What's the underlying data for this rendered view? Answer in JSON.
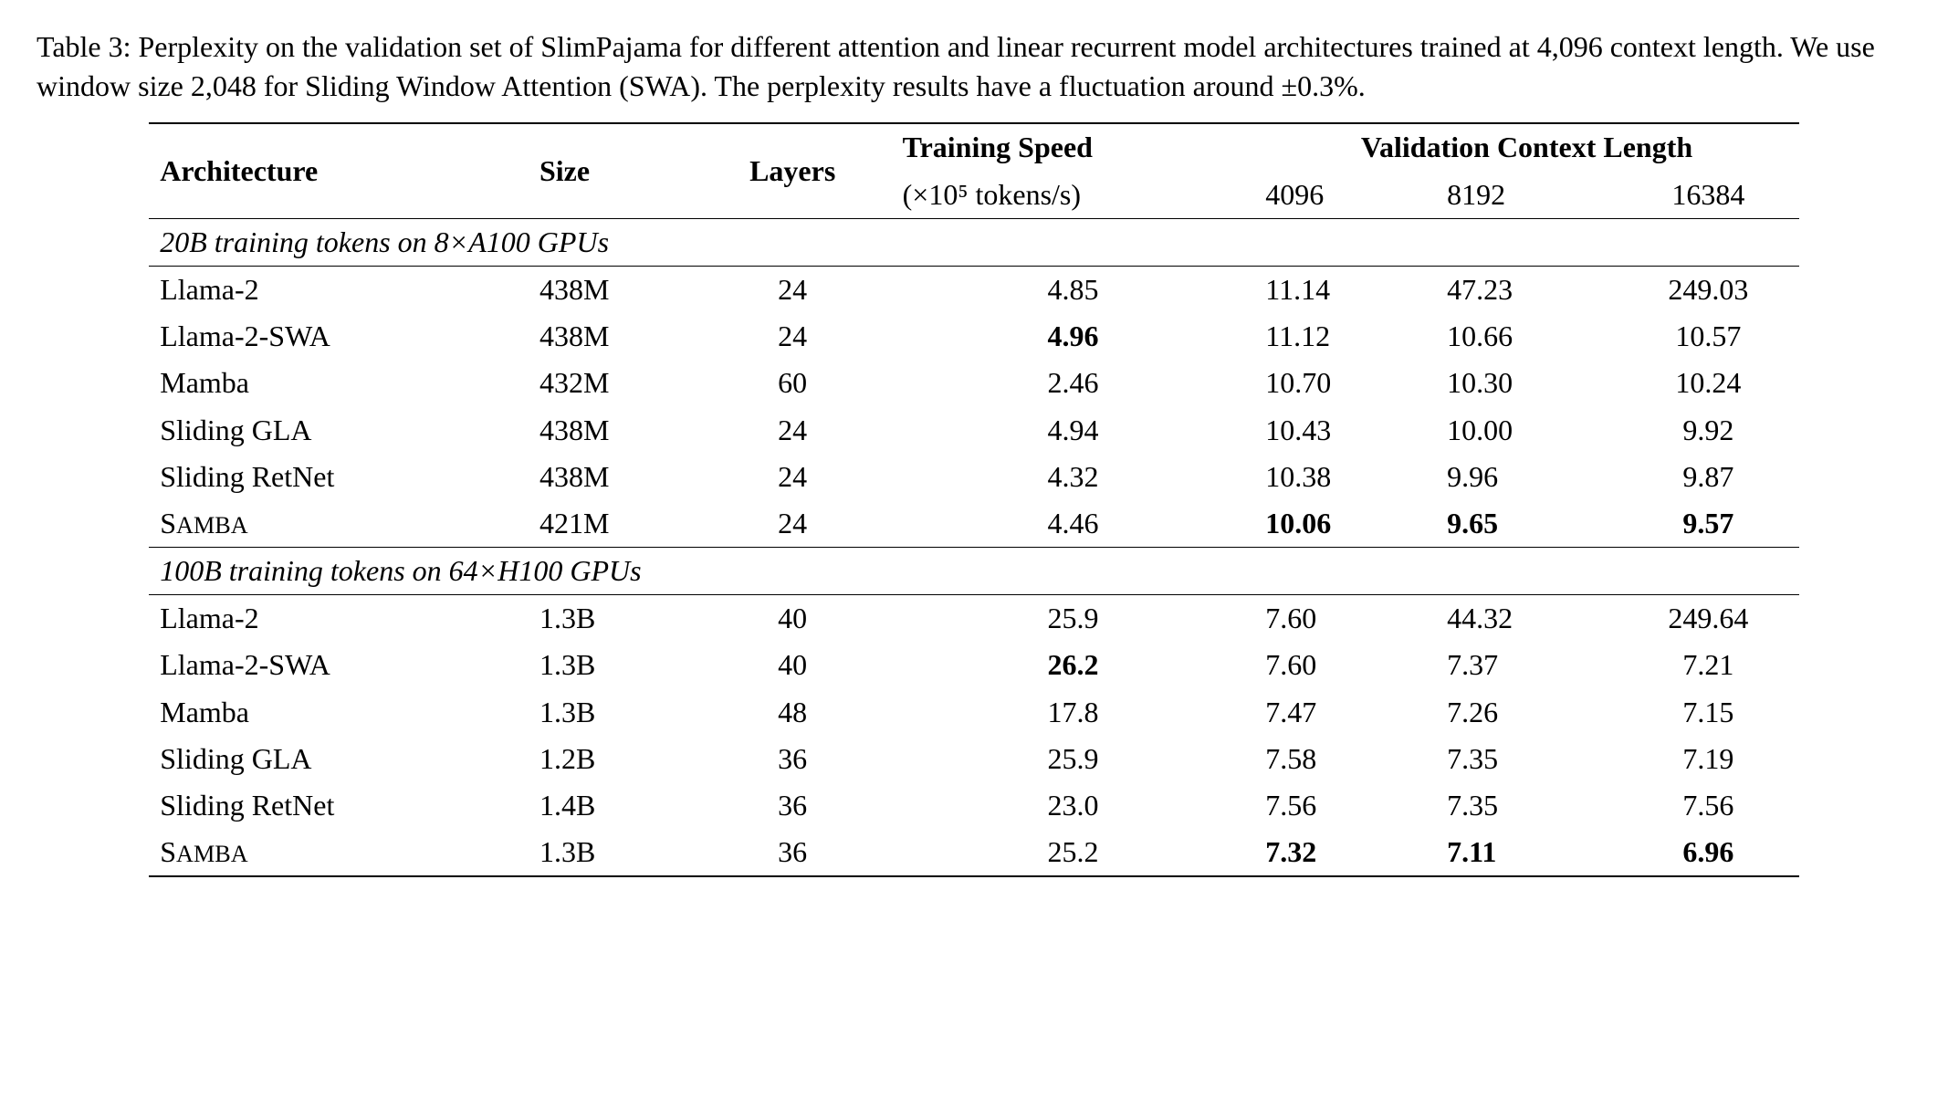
{
  "caption": {
    "prefix": "Table 3: ",
    "text": "Perplexity on the validation set of SlimPajama for different attention and linear recurrent model architectures trained at 4,096 context length. We use window size 2,048 for Sliding Window Attention (SWA). The perplexity results have a fluctuation around ±0.3%."
  },
  "headers": {
    "architecture": "Architecture",
    "size": "Size",
    "layers": "Layers",
    "training_speed": "Training Speed",
    "training_speed_sub": "(×10⁵ tokens/s)",
    "validation": "Validation Context Length",
    "v_4096": "4096",
    "v_8192": "8192",
    "v_16384": "16384"
  },
  "sections": [
    {
      "title": "20B training tokens on 8×A100 GPUs",
      "rows": [
        {
          "arch": "Llama-2",
          "size": "438M",
          "layers": "24",
          "speed": "4.85",
          "speed_bold": false,
          "v1": "11.14",
          "v1_bold": false,
          "v2": "47.23",
          "v2_bold": false,
          "v3": "249.03",
          "v3_bold": false,
          "smallcaps": false
        },
        {
          "arch": "Llama-2-SWA",
          "size": "438M",
          "layers": "24",
          "speed": "4.96",
          "speed_bold": true,
          "v1": "11.12",
          "v1_bold": false,
          "v2": "10.66",
          "v2_bold": false,
          "v3": "10.57",
          "v3_bold": false,
          "smallcaps": false
        },
        {
          "arch": "Mamba",
          "size": "432M",
          "layers": "60",
          "speed": "2.46",
          "speed_bold": false,
          "v1": "10.70",
          "v1_bold": false,
          "v2": "10.30",
          "v2_bold": false,
          "v3": "10.24",
          "v3_bold": false,
          "smallcaps": false
        },
        {
          "arch": "Sliding GLA",
          "size": "438M",
          "layers": "24",
          "speed": "4.94",
          "speed_bold": false,
          "v1": "10.43",
          "v1_bold": false,
          "v2": "10.00",
          "v2_bold": false,
          "v3": "9.92",
          "v3_bold": false,
          "smallcaps": false
        },
        {
          "arch": "Sliding RetNet",
          "size": "438M",
          "layers": "24",
          "speed": "4.32",
          "speed_bold": false,
          "v1": "10.38",
          "v1_bold": false,
          "v2": "9.96",
          "v2_bold": false,
          "v3": "9.87",
          "v3_bold": false,
          "smallcaps": false
        },
        {
          "arch": "Samba",
          "size": "421M",
          "layers": "24",
          "speed": "4.46",
          "speed_bold": false,
          "v1": "10.06",
          "v1_bold": true,
          "v2": "9.65",
          "v2_bold": true,
          "v3": "9.57",
          "v3_bold": true,
          "smallcaps": true
        }
      ]
    },
    {
      "title": "100B training tokens on 64×H100 GPUs",
      "rows": [
        {
          "arch": "Llama-2",
          "size": "1.3B",
          "layers": "40",
          "speed": "25.9",
          "speed_bold": false,
          "v1": "7.60",
          "v1_bold": false,
          "v2": "44.32",
          "v2_bold": false,
          "v3": "249.64",
          "v3_bold": false,
          "smallcaps": false
        },
        {
          "arch": "Llama-2-SWA",
          "size": "1.3B",
          "layers": "40",
          "speed": "26.2",
          "speed_bold": true,
          "v1": "7.60",
          "v1_bold": false,
          "v2": "7.37",
          "v2_bold": false,
          "v3": "7.21",
          "v3_bold": false,
          "smallcaps": false
        },
        {
          "arch": "Mamba",
          "size": "1.3B",
          "layers": "48",
          "speed": "17.8",
          "speed_bold": false,
          "v1": "7.47",
          "v1_bold": false,
          "v2": "7.26",
          "v2_bold": false,
          "v3": "7.15",
          "v3_bold": false,
          "smallcaps": false
        },
        {
          "arch": "Sliding GLA",
          "size": "1.2B",
          "layers": "36",
          "speed": "25.9",
          "speed_bold": false,
          "v1": "7.58",
          "v1_bold": false,
          "v2": "7.35",
          "v2_bold": false,
          "v3": "7.19",
          "v3_bold": false,
          "smallcaps": false
        },
        {
          "arch": "Sliding RetNet",
          "size": "1.4B",
          "layers": "36",
          "speed": "23.0",
          "speed_bold": false,
          "v1": "7.56",
          "v1_bold": false,
          "v2": "7.35",
          "v2_bold": false,
          "v3": "7.56",
          "v3_bold": false,
          "smallcaps": false
        },
        {
          "arch": "Samba",
          "size": "1.3B",
          "layers": "36",
          "speed": "25.2",
          "speed_bold": false,
          "v1": "7.32",
          "v1_bold": true,
          "v2": "7.11",
          "v2_bold": true,
          "v3": "6.96",
          "v3_bold": true,
          "smallcaps": true
        }
      ]
    }
  ]
}
